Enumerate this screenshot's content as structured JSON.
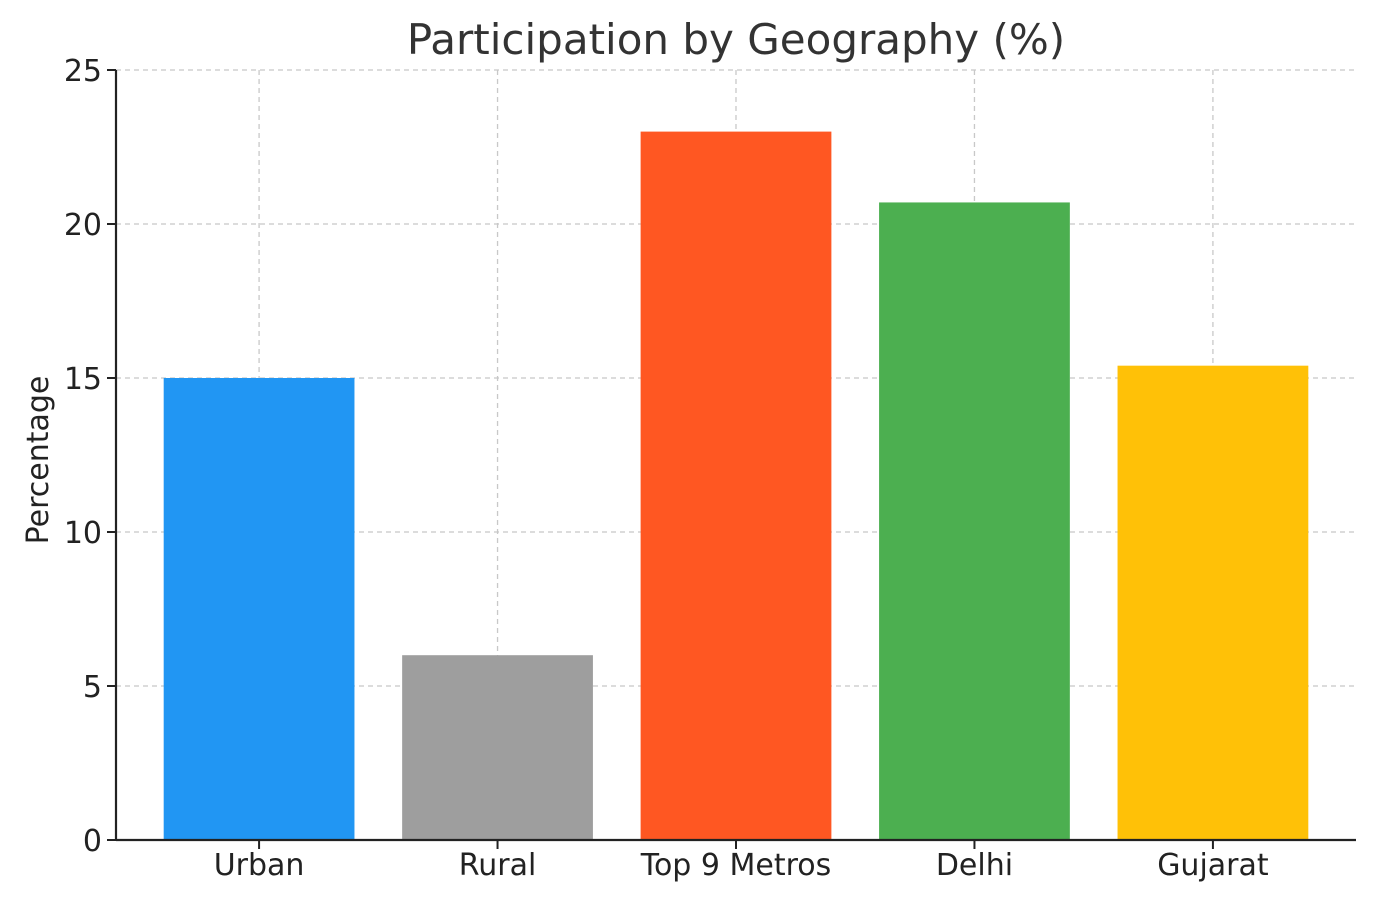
{
  "chart_data": {
    "type": "bar",
    "title": "Participation by Geography (%)",
    "xlabel": "",
    "ylabel": "Percentage",
    "categories": [
      "Urban",
      "Rural",
      "Top 9 Metros",
      "Delhi",
      "Gujarat"
    ],
    "values": [
      15.0,
      6.0,
      23.0,
      20.7,
      15.4
    ],
    "colors": [
      "#2196F3",
      "#9E9E9E",
      "#FF5722",
      "#4CAF50",
      "#FFC107"
    ],
    "ylim": [
      0,
      25
    ],
    "yticks": [
      0,
      5,
      10,
      15,
      20,
      25
    ],
    "grid": true,
    "legend": "none"
  }
}
